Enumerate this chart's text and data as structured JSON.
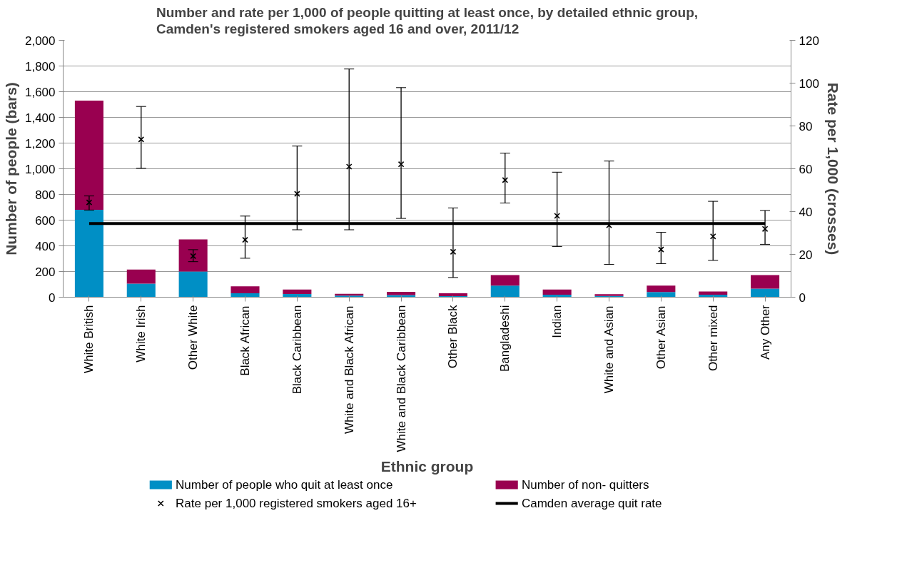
{
  "chart_data": {
    "type": "bar",
    "title": "Number and rate per 1,000 of people quitting at least once, by detailed ethnic group,\nCamden's registered smokers aged 16 and over, 2011/12",
    "xlabel": "Ethnic group",
    "ylabel": "Number of people (bars)",
    "y2label": "Rate per 1,000 (crosses)",
    "categories": [
      "White British",
      "White Irish",
      "Other White",
      "Black African",
      "Black Caribbean",
      "White and Black African",
      "White and Black Caribbean",
      "Other Black",
      "Bangladeshi",
      "Indian",
      "White and Asian",
      "Other Asian",
      "Other mixed",
      "Any Other"
    ],
    "stacked": true,
    "series": [
      {
        "name": "Number of people who quit at least once",
        "color": "#008fc5",
        "values": [
          680,
          105,
          200,
          30,
          25,
          13,
          17,
          8,
          90,
          20,
          10,
          40,
          20,
          66
        ]
      },
      {
        "name": "Number of non- quitters",
        "color": "#990050",
        "values": [
          850,
          110,
          250,
          55,
          35,
          13,
          24,
          22,
          82,
          40,
          13,
          50,
          25,
          106
        ]
      },
      {
        "name": "Rate per 1,000 registered smokers aged 16+",
        "type": "scatter",
        "axis": "y2",
        "marker": "cross",
        "color": "#000000",
        "values": [
          44.3,
          73.7,
          19.2,
          26.8,
          48.3,
          61.0,
          62.1,
          21.2,
          54.7,
          38.0,
          33.6,
          22.3,
          28.4,
          31.9
        ],
        "errors": [
          [
            40.7,
            47.3
          ],
          [
            60.2,
            89.1
          ],
          [
            16.6,
            22.2
          ],
          [
            18.2,
            37.9
          ],
          [
            31.5,
            70.6
          ],
          [
            31.5,
            106.6
          ],
          [
            36.8,
            97.9
          ],
          [
            9.2,
            41.7
          ],
          [
            44.0,
            67.3
          ],
          [
            23.7,
            58.4
          ],
          [
            15.3,
            63.6
          ],
          [
            15.7,
            30.3
          ],
          [
            17.2,
            44.8
          ],
          [
            24.7,
            40.5
          ]
        ]
      },
      {
        "name": "Camden average quit rate",
        "type": "line",
        "axis": "y2",
        "color": "#000000",
        "values": [
          34.4,
          34.4,
          34.4,
          34.4,
          34.4,
          34.4,
          34.4,
          34.4,
          34.4,
          34.4,
          34.4,
          34.4,
          34.4,
          34.4
        ]
      }
    ],
    "ylim": [
      0,
      2000
    ],
    "yticks": [
      {
        "value": 0,
        "label": "0"
      },
      {
        "value": 200,
        "label": "200"
      },
      {
        "value": 400,
        "label": "400"
      },
      {
        "value": 600,
        "label": "600"
      },
      {
        "value": 800,
        "label": "800"
      },
      {
        "value": 1000,
        "label": "1,000"
      },
      {
        "value": 1200,
        "label": "1,200"
      },
      {
        "value": 1400,
        "label": "1,400"
      },
      {
        "value": 1600,
        "label": "1,600"
      },
      {
        "value": 1800,
        "label": "1,800"
      },
      {
        "value": 2000,
        "label": "2,000"
      }
    ],
    "y2lim": [
      0,
      120
    ],
    "y2ticks": [
      0,
      20,
      40,
      60,
      80,
      100,
      120
    ],
    "grid": "y",
    "legend": "bottom"
  }
}
